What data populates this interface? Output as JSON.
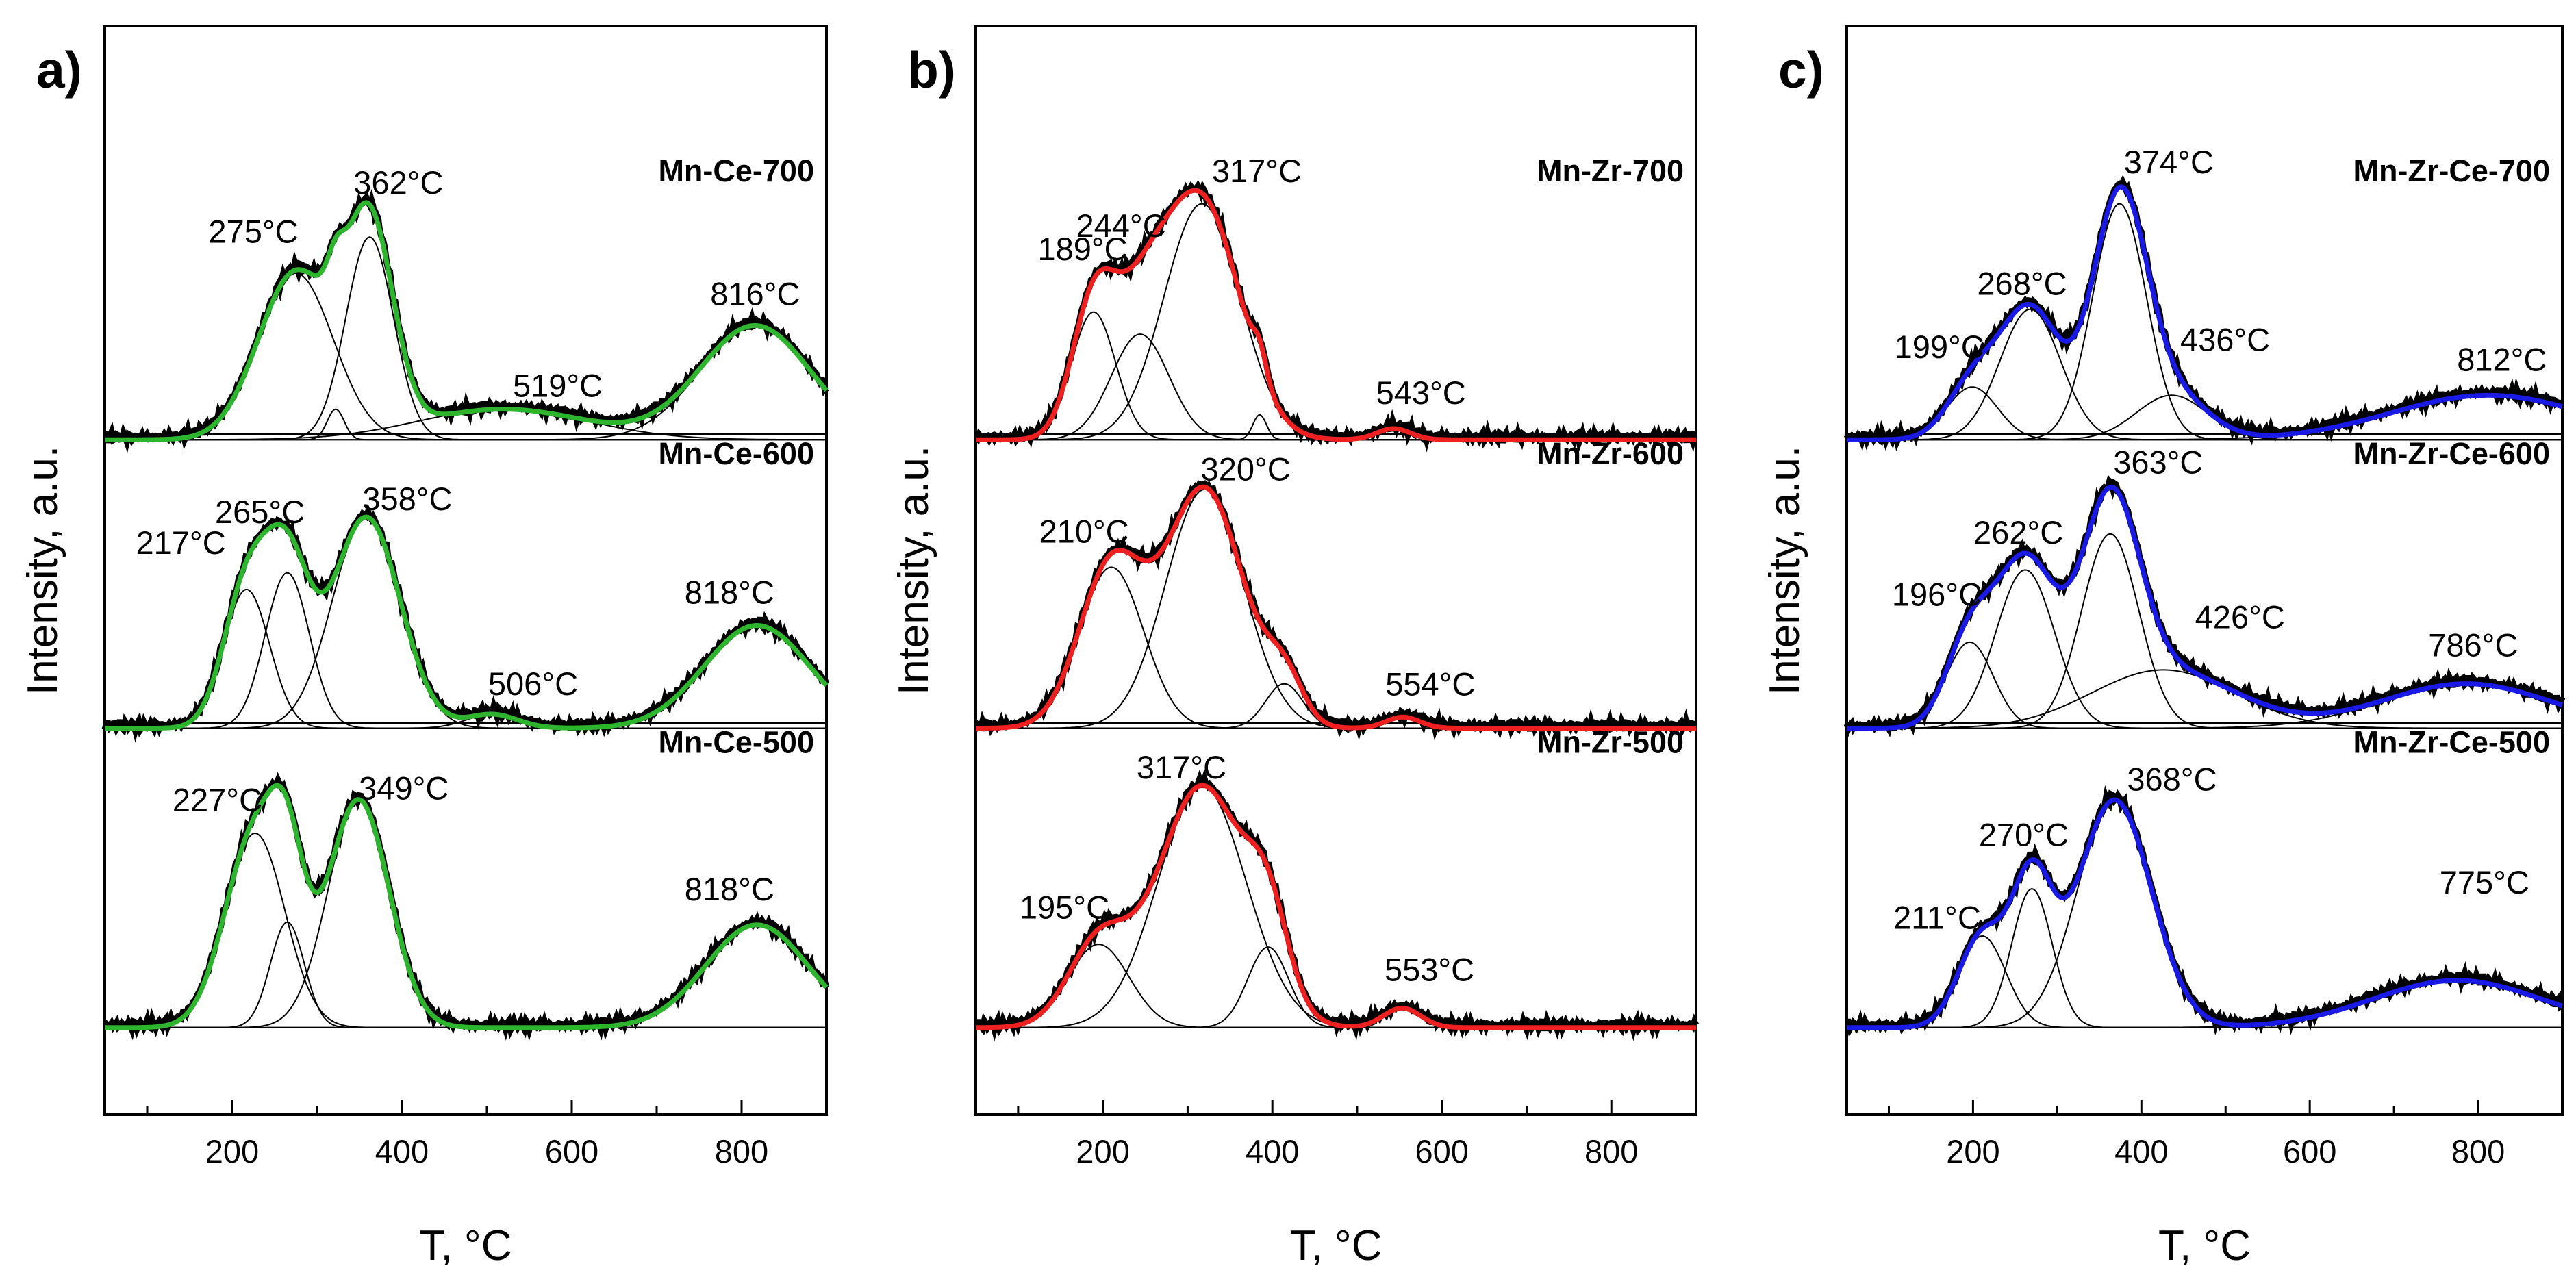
{
  "chart_data": [
    {
      "type": "line",
      "panel_label": "a)",
      "xlabel": "T, °C",
      "ylabel": "Intensity, a.u.",
      "xlim": [
        50,
        900
      ],
      "xticks": [
        200,
        400,
        600,
        800
      ],
      "fit_color": "#2db52d",
      "stacks": [
        {
          "name": "Mn-Ce-700",
          "peaks": [
            {
              "center": 275,
              "amp": 0.6,
              "width": 44,
              "label": "275°C"
            },
            {
              "center": 322,
              "amp": 0.11,
              "width": 10,
              "label": ""
            },
            {
              "center": 362,
              "amp": 0.73,
              "width": 28,
              "label": "362°C"
            },
            {
              "center": 519,
              "amp": 0.11,
              "width": 100,
              "label": "519°C"
            },
            {
              "center": 816,
              "amp": 0.41,
              "width": 65,
              "label": "816°C"
            }
          ]
        },
        {
          "name": "Mn-Ce-600",
          "peaks": [
            {
              "center": 217,
              "amp": 0.5,
              "width": 27,
              "label": "217°C"
            },
            {
              "center": 265,
              "amp": 0.56,
              "width": 26,
              "label": "265°C"
            },
            {
              "center": 358,
              "amp": 0.76,
              "width": 40,
              "label": "358°C"
            },
            {
              "center": 506,
              "amp": 0.05,
              "width": 30,
              "label": "506°C"
            },
            {
              "center": 818,
              "amp": 0.37,
              "width": 62,
              "label": "818°C"
            }
          ]
        },
        {
          "name": "Mn-Ce-500",
          "peaks": [
            {
              "center": 227,
              "amp": 0.7,
              "width": 35,
              "label": "227°C"
            },
            {
              "center": 265,
              "amp": 0.38,
              "width": 20,
              "label": ""
            },
            {
              "center": 349,
              "amp": 0.82,
              "width": 36,
              "label": "349°C"
            },
            {
              "center": 818,
              "amp": 0.37,
              "width": 60,
              "label": "818°C"
            }
          ]
        }
      ]
    },
    {
      "type": "line",
      "panel_label": "b)",
      "xlabel": "T, °C",
      "ylabel": "Intensity, a.u.",
      "xlim": [
        50,
        900
      ],
      "xticks": [
        200,
        400,
        600,
        800
      ],
      "fit_color": "#ee2020",
      "stacks": [
        {
          "name": "Mn-Zr-700",
          "peaks": [
            {
              "center": 189,
              "amp": 0.46,
              "width": 26,
              "label": "189°C"
            },
            {
              "center": 244,
              "amp": 0.38,
              "width": 34,
              "label": "244°C"
            },
            {
              "center": 317,
              "amp": 0.85,
              "width": 45,
              "label": "317°C"
            },
            {
              "center": 385,
              "amp": 0.09,
              "width": 8,
              "label": ""
            },
            {
              "center": 543,
              "amp": 0.04,
              "width": 20,
              "label": "543°C"
            }
          ]
        },
        {
          "name": "Mn-Zr-600",
          "peaks": [
            {
              "center": 210,
              "amp": 0.58,
              "width": 38,
              "label": "210°C"
            },
            {
              "center": 320,
              "amp": 0.86,
              "width": 46,
              "label": "320°C"
            },
            {
              "center": 414,
              "amp": 0.16,
              "width": 22,
              "label": ""
            },
            {
              "center": 554,
              "amp": 0.04,
              "width": 20,
              "label": "554°C"
            }
          ]
        },
        {
          "name": "Mn-Zr-500",
          "peaks": [
            {
              "center": 195,
              "amp": 0.3,
              "width": 36,
              "label": "195°C"
            },
            {
              "center": 317,
              "amp": 0.87,
              "width": 52,
              "label": "317°C"
            },
            {
              "center": 395,
              "amp": 0.29,
              "width": 24,
              "label": ""
            },
            {
              "center": 553,
              "amp": 0.07,
              "width": 22,
              "label": "553°C"
            }
          ]
        }
      ]
    },
    {
      "type": "line",
      "panel_label": "c)",
      "xlabel": "T, °C",
      "ylabel": "Intensity, a.u.",
      "xlim": [
        50,
        900
      ],
      "xticks": [
        200,
        400,
        600,
        800
      ],
      "fit_color": "#1a1ae6",
      "stacks": [
        {
          "name": "Mn-Zr-Ce-700",
          "peaks": [
            {
              "center": 199,
              "amp": 0.19,
              "width": 30,
              "label": "199°C"
            },
            {
              "center": 268,
              "amp": 0.47,
              "width": 36,
              "label": "268°C"
            },
            {
              "center": 374,
              "amp": 0.85,
              "width": 32,
              "label": "374°C"
            },
            {
              "center": 436,
              "amp": 0.16,
              "width": 42,
              "label": "436°C"
            },
            {
              "center": 812,
              "amp": 0.16,
              "width": 115,
              "label": "812°C"
            }
          ]
        },
        {
          "name": "Mn-Zr-Ce-600",
          "peaks": [
            {
              "center": 196,
              "amp": 0.31,
              "width": 28,
              "label": "196°C"
            },
            {
              "center": 262,
              "amp": 0.57,
              "width": 35,
              "label": "262°C"
            },
            {
              "center": 363,
              "amp": 0.7,
              "width": 34,
              "label": "363°C"
            },
            {
              "center": 426,
              "amp": 0.21,
              "width": 85,
              "label": "426°C"
            },
            {
              "center": 786,
              "amp": 0.16,
              "width": 100,
              "label": "786°C"
            }
          ]
        },
        {
          "name": "Mn-Zr-Ce-500",
          "peaks": [
            {
              "center": 211,
              "amp": 0.33,
              "width": 28,
              "label": "211°C"
            },
            {
              "center": 270,
              "amp": 0.5,
              "width": 24,
              "label": "270°C"
            },
            {
              "center": 368,
              "amp": 0.82,
              "width": 44,
              "label": "368°C"
            },
            {
              "center": 775,
              "amp": 0.17,
              "width": 100,
              "label": "775°C"
            }
          ]
        }
      ]
    }
  ]
}
